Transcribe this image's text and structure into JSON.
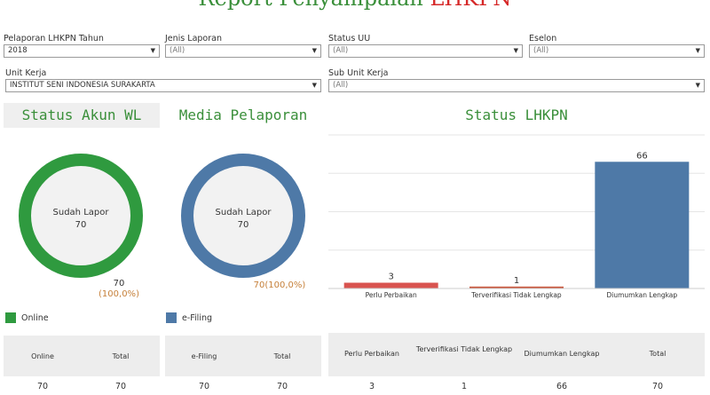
{
  "header": {
    "title_main": "Report Penyampaian ",
    "title_accent": "LHKPN"
  },
  "filters": {
    "tahun": {
      "label": "Pelaporan LHKPN Tahun",
      "value": "2018"
    },
    "jenis": {
      "label": "Jenis Laporan",
      "value": "(All)"
    },
    "status_uu": {
      "label": "Status UU",
      "value": "(All)"
    },
    "eselon": {
      "label": "Eselon",
      "value": "(All)"
    },
    "unit_kerja": {
      "label": "Unit Kerja",
      "value": "INSTITUT SENI INDONESIA SURAKARTA"
    },
    "sub_unit_kerja": {
      "label": "Sub Unit Kerja",
      "value": "(All)"
    }
  },
  "status_akun": {
    "title": "Status Akun WL",
    "center_label": "Sudah Lapor",
    "center_value": "70",
    "value": "70",
    "percent": "(100,0%)",
    "fraction": 1.0,
    "color": "#2f9a3f",
    "legend": "Online",
    "table": {
      "headers": [
        "Online",
        "Total"
      ],
      "values": [
        "70",
        "70"
      ]
    }
  },
  "media": {
    "title": "Media Pelaporan",
    "center_label": "Sudah Lapor",
    "center_value": "70",
    "value": "70(100,0%)",
    "fraction": 1.0,
    "color": "#4e79a7",
    "legend": "e-Filing",
    "table": {
      "headers": [
        "e-Filing",
        "Total"
      ],
      "values": [
        "70",
        "70"
      ]
    }
  },
  "status_lhkpn": {
    "title": "Status LHKPN",
    "table": {
      "headers": [
        "Perlu Perbaikan",
        "Terverifikasi Tidak Lengkap",
        "Diumumkan Lengkap",
        "Total"
      ],
      "values": [
        "3",
        "1",
        "66",
        "70"
      ]
    }
  },
  "chart_data": {
    "type": "bar",
    "categories": [
      "Perlu Perbaikan",
      "Terverifikasi Tidak Lengkap",
      "Diumumkan Lengkap"
    ],
    "values": [
      3,
      1,
      66
    ],
    "colors": [
      "#d9534f",
      "#c9563c",
      "#4e79a7"
    ],
    "title": "Status LHKPN",
    "ylim": [
      0,
      80
    ],
    "grid": true
  }
}
